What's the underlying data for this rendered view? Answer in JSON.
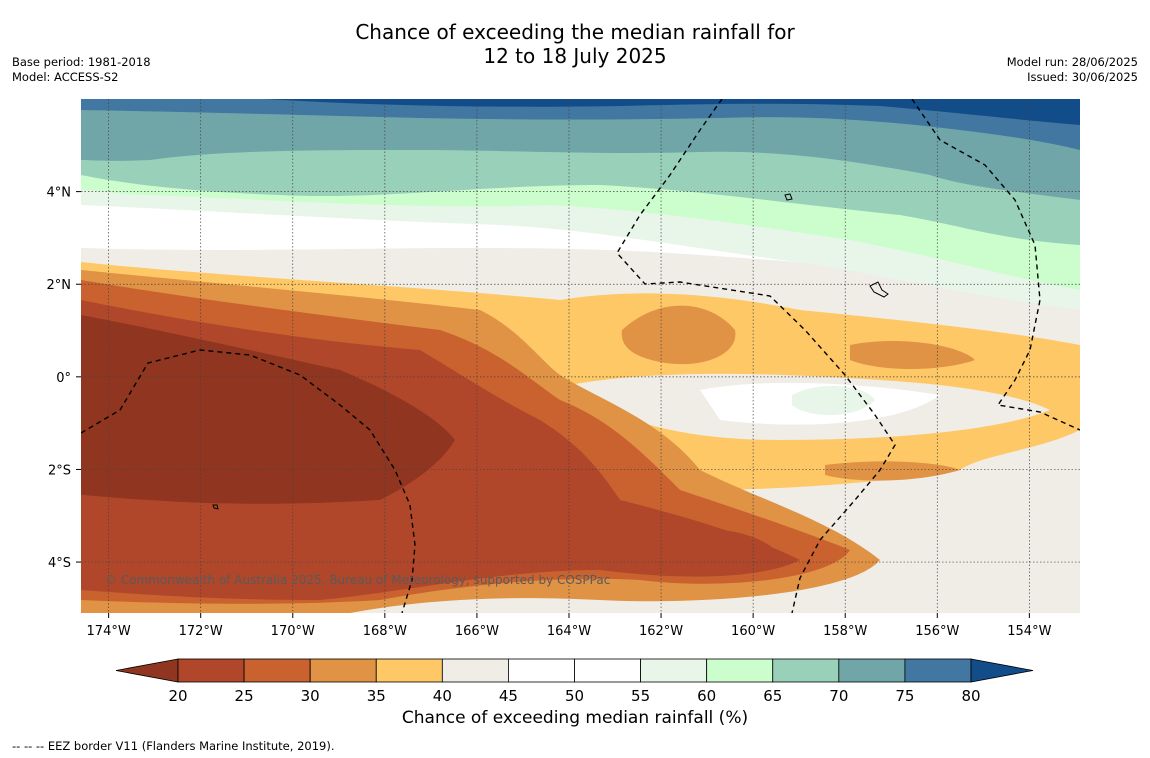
{
  "header": {
    "title_line1": "Chance of exceeding the median rainfall for",
    "title_line2": "12 to 18 July 2025",
    "base_period": "Base period: 1981-2018",
    "model": "Model: ACCESS-S2",
    "model_run": "Model run: 28/06/2025",
    "issued": "Issued: 30/06/2025"
  },
  "copyright": "© Commonwealth of Australia 2025, Bureau of Meteorology, supported by COSPPac",
  "footer": "-- -- -- EEZ border V11 (Flanders Marine Institute, 2019).",
  "chart_data": {
    "type": "heatmap",
    "x_tick_labels": [
      "174°W",
      "172°W",
      "170°W",
      "168°W",
      "166°W",
      "164°W",
      "162°W",
      "160°W",
      "158°W",
      "156°W",
      "154°W"
    ],
    "y_tick_labels": [
      "4°N",
      "2°N",
      "0°",
      "2°S",
      "4°S"
    ],
    "x_ticks": [
      -174,
      -172,
      -170,
      -168,
      -166,
      -164,
      -162,
      -160,
      -158,
      -156,
      -154
    ],
    "y_ticks": [
      4,
      2,
      0,
      -2,
      -4
    ],
    "xlim": [
      -174.6,
      -152.9
    ],
    "ylim": [
      -5.1,
      6.0
    ],
    "grid": true,
    "colorbar": {
      "label": "Chance of exceeding median rainfall (%)",
      "boundaries": [
        20,
        25,
        30,
        35,
        40,
        45,
        50,
        55,
        60,
        65,
        70,
        75,
        80
      ],
      "colors": [
        "#8f3520",
        "#b0472a",
        "#c9622f",
        "#e09245",
        "#fec866",
        "#f0ece6",
        "#ffffff",
        "#ffffff",
        "#e8f5e9",
        "#ccfdcc",
        "#99d0b9",
        "#70a6a8",
        "#4177a0",
        "#124d8a"
      ],
      "under_color": "#8f3520",
      "over_color": "#124d8a"
    },
    "legend_entries": [
      "-- -- -- EEZ border V11 (Flanders Marine Institute, 2019)."
    ]
  }
}
